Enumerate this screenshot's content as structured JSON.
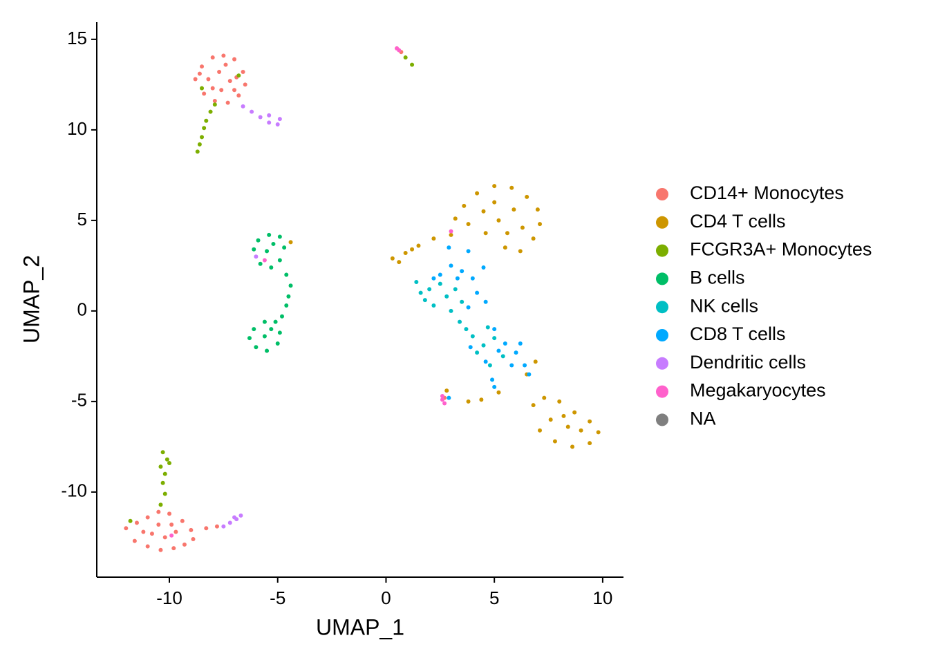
{
  "chart_data": {
    "type": "scatter",
    "x_label": "UMAP_1",
    "y_label": "UMAP_2",
    "xlim": [
      -13.35,
      10.96
    ],
    "ylim": [
      -14.7,
      15.95
    ],
    "xticks": [
      -10,
      -5,
      0,
      5,
      10
    ],
    "yticks": [
      -10,
      -5,
      0,
      5,
      10,
      15
    ],
    "grid": false,
    "legend": "right",
    "series": [
      {
        "name": "CD14+ Monocytes",
        "color": "#F8766D",
        "x": [
          -8.5,
          -8.0,
          -7.5,
          -7.0,
          -6.6,
          -6.5,
          -6.8,
          -7.3,
          -7.9,
          -8.4,
          -8.8,
          -8.2,
          -7.7,
          -7.2,
          -7.6,
          -7.0,
          -8.0,
          -8.6,
          -7.4,
          -6.9,
          -12.0,
          -11.5,
          -11.0,
          -10.5,
          -10.0,
          -9.4,
          -9.0,
          -8.9,
          -9.3,
          -9.8,
          -10.4,
          -11.0,
          -11.6,
          -10.8,
          -10.2,
          -9.7,
          -11.2,
          -10.5,
          -9.9,
          -8.3,
          -7.8,
          0.5,
          0.7,
          2.7
        ],
        "values": [
          13.5,
          14.0,
          14.1,
          13.9,
          13.2,
          12.5,
          11.9,
          11.5,
          11.6,
          12.0,
          12.8,
          12.8,
          13.2,
          12.7,
          12.2,
          12.2,
          12.3,
          13.1,
          13.6,
          12.9,
          -12.0,
          -11.7,
          -11.4,
          -11.1,
          -11.2,
          -11.6,
          -12.1,
          -12.6,
          -12.9,
          -13.1,
          -13.2,
          -13.0,
          -12.7,
          -12.3,
          -12.5,
          -12.2,
          -12.2,
          -11.8,
          -11.8,
          -12.0,
          -11.9,
          14.5,
          14.3,
          -4.8
        ]
      },
      {
        "name": "CD4 T cells",
        "color": "#CD9600",
        "x": [
          3.2,
          3.6,
          4.2,
          5.0,
          5.8,
          6.5,
          7.0,
          7.1,
          6.8,
          6.2,
          5.5,
          4.6,
          3.8,
          4.5,
          5.2,
          5.9,
          6.3,
          5.0,
          5.6,
          3.0,
          2.2,
          1.5,
          0.9,
          0.3,
          0.6,
          1.2,
          -4.4,
          6.8,
          7.3,
          8.0,
          8.7,
          9.4,
          9.8,
          9.4,
          8.6,
          7.8,
          7.1,
          7.6,
          8.4,
          9.0,
          8.2,
          6.5,
          6.9,
          5.2,
          4.4,
          3.8,
          2.8
        ],
        "values": [
          5.1,
          5.8,
          6.5,
          6.9,
          6.8,
          6.3,
          5.6,
          4.8,
          4.0,
          3.3,
          3.5,
          4.3,
          4.8,
          5.5,
          5.0,
          5.6,
          4.6,
          6.0,
          4.3,
          4.2,
          4.0,
          3.6,
          3.2,
          2.9,
          2.7,
          3.4,
          3.8,
          -5.2,
          -4.8,
          -5.0,
          -5.6,
          -6.1,
          -6.7,
          -7.3,
          -7.5,
          -7.2,
          -6.6,
          -6.0,
          -6.4,
          -6.6,
          -5.8,
          -3.5,
          -2.8,
          -4.5,
          -4.9,
          -5.0,
          -4.4
        ]
      },
      {
        "name": "FCGR3A+ Monocytes",
        "color": "#7CAE00",
        "x": [
          -8.7,
          -8.6,
          -8.5,
          -8.4,
          -8.3,
          -8.1,
          -7.9,
          -8.5,
          -6.8,
          0.9,
          1.2,
          -10.3,
          -10.1,
          -10.4,
          -10.2,
          -10.0,
          -10.3,
          -10.2,
          -10.4,
          -11.8
        ],
        "values": [
          8.8,
          9.2,
          9.6,
          10.1,
          10.5,
          11.0,
          11.4,
          12.3,
          13.0,
          14.0,
          13.6,
          -7.8,
          -8.2,
          -8.6,
          -9.0,
          -8.4,
          -9.5,
          -10.1,
          -10.7,
          -11.6
        ]
      },
      {
        "name": "B cells",
        "color": "#00BE67",
        "x": [
          -6.1,
          -5.9,
          -5.4,
          -4.9,
          -4.7,
          -4.9,
          -5.3,
          -5.8,
          -5.5,
          -5.2,
          -4.6,
          -4.4,
          -4.5,
          -4.6,
          -4.8,
          -5.1,
          -5.6,
          -6.1,
          -6.3,
          -6.0,
          -5.5,
          -5.0,
          -4.9,
          -5.6,
          -5.3
        ],
        "values": [
          3.4,
          3.9,
          4.2,
          4.1,
          3.5,
          2.8,
          2.4,
          2.6,
          3.3,
          3.7,
          2.0,
          1.4,
          0.8,
          0.3,
          -0.3,
          -0.6,
          -0.6,
          -1.0,
          -1.5,
          -2.0,
          -2.2,
          -1.8,
          -1.2,
          -1.4,
          -1.0
        ]
      },
      {
        "name": "NK cells",
        "color": "#00BFC4",
        "x": [
          1.4,
          1.8,
          2.2,
          2.8,
          2.5,
          3.2,
          2.0,
          3.0,
          3.4,
          3.7,
          4.0,
          4.5,
          4.7,
          5.0,
          4.2,
          5.4,
          3.5,
          1.6,
          4.8
        ],
        "values": [
          1.6,
          0.6,
          0.3,
          0.8,
          1.5,
          1.2,
          1.2,
          0.0,
          -0.6,
          -1.0,
          -1.4,
          -1.9,
          -0.9,
          -1.5,
          -2.3,
          -2.5,
          0.5,
          1.0,
          -3.0
        ]
      },
      {
        "name": "CD8 T cells",
        "color": "#00A9FF",
        "x": [
          2.5,
          3.0,
          3.5,
          4.0,
          4.2,
          3.8,
          3.3,
          2.9,
          3.8,
          4.5,
          2.2,
          4.6,
          5.0,
          5.5,
          6.0,
          6.4,
          6.6,
          5.8,
          5.2,
          6.2,
          4.9,
          5.0,
          2.9,
          4.6,
          3.9
        ],
        "values": [
          2.0,
          2.5,
          2.2,
          1.8,
          1.0,
          0.2,
          1.8,
          3.5,
          3.3,
          2.4,
          1.8,
          0.5,
          -1.0,
          -1.8,
          -2.3,
          -3.0,
          -3.5,
          -3.0,
          -2.2,
          -1.8,
          -3.8,
          -4.2,
          -4.8,
          -2.8,
          -2.0
        ]
      },
      {
        "name": "Dendritic cells",
        "color": "#C77CFF",
        "x": [
          -6.6,
          -6.2,
          -5.8,
          -5.4,
          -5.0,
          -4.9,
          -5.4,
          -7.5,
          -7.2,
          -6.9,
          -6.7,
          -7.0,
          -6.0
        ],
        "values": [
          11.3,
          11.0,
          10.7,
          10.4,
          10.3,
          10.6,
          10.8,
          -11.9,
          -11.7,
          -11.5,
          -11.3,
          -11.4,
          3.0
        ]
      },
      {
        "name": "Megakaryocytes",
        "color": "#FF61CC",
        "x": [
          2.6,
          2.7,
          2.6,
          0.5,
          0.6,
          -5.6,
          3.0,
          -9.9
        ],
        "values": [
          -4.9,
          -5.1,
          -4.7,
          14.5,
          14.4,
          2.8,
          4.4,
          -12.4
        ]
      },
      {
        "name": "NA",
        "color": "#7F7F7F",
        "x": [],
        "values": []
      }
    ]
  }
}
